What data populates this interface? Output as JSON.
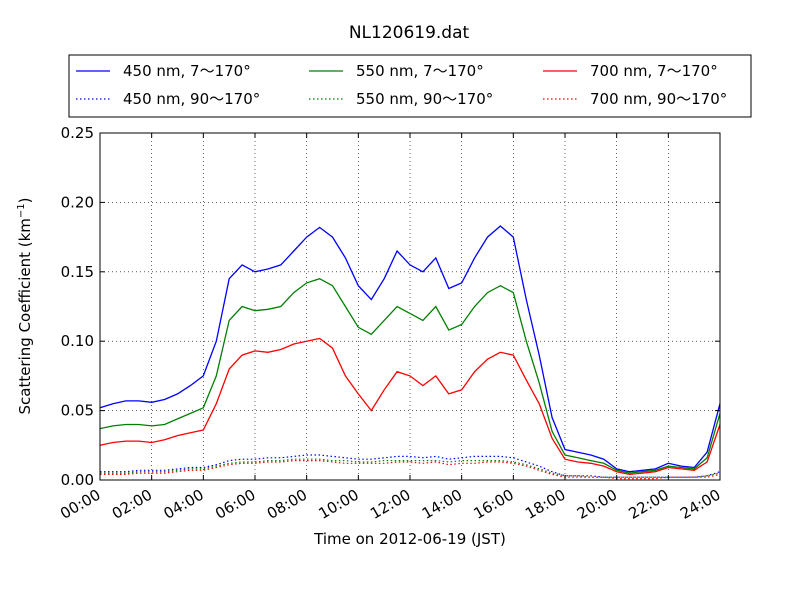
{
  "chart_data": {
    "type": "line",
    "title": "NL120619.dat",
    "xlabel": "Time on 2012-06-19 (JST)",
    "ylabel": "Scattering Coefficient (km",
    "ylabel_sup": "−1",
    "ylabel_close": ")",
    "xlim": [
      0,
      24
    ],
    "ylim": [
      0,
      0.25
    ],
    "grid": true,
    "legend_position": "top (above plot)",
    "x_ticks": [
      0,
      2,
      4,
      6,
      8,
      10,
      12,
      14,
      16,
      18,
      20,
      22,
      24
    ],
    "x_tick_labels": [
      "00:00",
      "02:00",
      "04:00",
      "06:00",
      "08:00",
      "10:00",
      "12:00",
      "14:00",
      "16:00",
      "18:00",
      "20:00",
      "22:00",
      "24:00"
    ],
    "y_ticks": [
      0,
      0.05,
      0.1,
      0.15,
      0.2,
      0.25
    ],
    "y_tick_labels": [
      "0.00",
      "0.05",
      "0.10",
      "0.15",
      "0.20",
      "0.25"
    ],
    "x": [
      0,
      0.5,
      1,
      1.5,
      2,
      2.5,
      3,
      3.5,
      4,
      4.5,
      5,
      5.5,
      6,
      6.5,
      7,
      7.5,
      8,
      8.5,
      9,
      9.5,
      10,
      10.5,
      11,
      11.5,
      12,
      12.5,
      13,
      13.5,
      14,
      14.5,
      15,
      15.5,
      16,
      16.5,
      17,
      17.5,
      18,
      18.5,
      19,
      19.5,
      20,
      20.5,
      21,
      21.5,
      22,
      22.5,
      23,
      23.5,
      24
    ],
    "series": [
      {
        "name": "450 nm, 7～170°",
        "color": "#0000ff",
        "style": "solid",
        "values": [
          0.052,
          0.055,
          0.057,
          0.057,
          0.056,
          0.058,
          0.062,
          0.068,
          0.075,
          0.1,
          0.145,
          0.155,
          0.15,
          0.152,
          0.155,
          0.165,
          0.175,
          0.182,
          0.175,
          0.16,
          0.14,
          0.13,
          0.145,
          0.165,
          0.155,
          0.15,
          0.16,
          0.138,
          0.142,
          0.16,
          0.175,
          0.183,
          0.175,
          0.13,
          0.09,
          0.045,
          0.022,
          0.02,
          0.018,
          0.015,
          0.008,
          0.006,
          0.007,
          0.008,
          0.012,
          0.01,
          0.009,
          0.02,
          0.055
        ]
      },
      {
        "name": "550 nm, 7～170°",
        "color": "#008000",
        "style": "solid",
        "values": [
          0.037,
          0.039,
          0.04,
          0.04,
          0.039,
          0.04,
          0.044,
          0.048,
          0.052,
          0.075,
          0.115,
          0.125,
          0.122,
          0.123,
          0.125,
          0.135,
          0.142,
          0.145,
          0.14,
          0.125,
          0.11,
          0.105,
          0.115,
          0.125,
          0.12,
          0.115,
          0.125,
          0.108,
          0.112,
          0.125,
          0.135,
          0.14,
          0.135,
          0.1,
          0.07,
          0.035,
          0.018,
          0.016,
          0.014,
          0.012,
          0.007,
          0.005,
          0.006,
          0.007,
          0.01,
          0.009,
          0.008,
          0.016,
          0.048
        ]
      },
      {
        "name": "700 nm, 7～170°",
        "color": "#ff0000",
        "style": "solid",
        "values": [
          0.025,
          0.027,
          0.028,
          0.028,
          0.027,
          0.029,
          0.032,
          0.034,
          0.036,
          0.055,
          0.08,
          0.09,
          0.093,
          0.092,
          0.094,
          0.098,
          0.1,
          0.102,
          0.095,
          0.075,
          0.062,
          0.05,
          0.065,
          0.078,
          0.075,
          0.068,
          0.075,
          0.062,
          0.065,
          0.078,
          0.087,
          0.092,
          0.09,
          0.072,
          0.055,
          0.03,
          0.015,
          0.013,
          0.012,
          0.01,
          0.006,
          0.004,
          0.005,
          0.006,
          0.009,
          0.008,
          0.007,
          0.013,
          0.04
        ]
      },
      {
        "name": "450 nm, 90～170°",
        "color": "#0000ff",
        "style": "dotted",
        "values": [
          0.006,
          0.006,
          0.006,
          0.007,
          0.007,
          0.007,
          0.008,
          0.009,
          0.009,
          0.011,
          0.014,
          0.015,
          0.015,
          0.016,
          0.016,
          0.017,
          0.018,
          0.018,
          0.017,
          0.016,
          0.015,
          0.015,
          0.016,
          0.017,
          0.017,
          0.016,
          0.017,
          0.015,
          0.016,
          0.017,
          0.017,
          0.017,
          0.016,
          0.013,
          0.01,
          0.006,
          0.003,
          0.003,
          0.003,
          0.002,
          0.002,
          0.002,
          0.002,
          0.002,
          0.002,
          0.002,
          0.002,
          0.003,
          0.006
        ]
      },
      {
        "name": "550 nm, 90～170°",
        "color": "#008000",
        "style": "dotted",
        "values": [
          0.005,
          0.005,
          0.005,
          0.006,
          0.006,
          0.006,
          0.007,
          0.008,
          0.008,
          0.01,
          0.012,
          0.013,
          0.013,
          0.014,
          0.014,
          0.015,
          0.015,
          0.015,
          0.014,
          0.014,
          0.013,
          0.013,
          0.014,
          0.014,
          0.014,
          0.014,
          0.014,
          0.013,
          0.014,
          0.014,
          0.014,
          0.014,
          0.013,
          0.011,
          0.008,
          0.005,
          0.003,
          0.003,
          0.002,
          0.002,
          0.002,
          0.002,
          0.002,
          0.002,
          0.002,
          0.002,
          0.002,
          0.003,
          0.005
        ]
      },
      {
        "name": "700 nm, 90～170°",
        "color": "#ff0000",
        "style": "dotted",
        "values": [
          0.004,
          0.004,
          0.004,
          0.005,
          0.005,
          0.005,
          0.006,
          0.007,
          0.007,
          0.009,
          0.011,
          0.012,
          0.012,
          0.013,
          0.013,
          0.014,
          0.014,
          0.014,
          0.013,
          0.012,
          0.012,
          0.012,
          0.012,
          0.013,
          0.013,
          0.012,
          0.013,
          0.011,
          0.012,
          0.012,
          0.013,
          0.013,
          0.012,
          0.01,
          0.007,
          0.004,
          0.002,
          0.002,
          0.002,
          0.002,
          0.001,
          0.001,
          0.001,
          0.001,
          0.002,
          0.002,
          0.002,
          0.002,
          0.004
        ]
      }
    ]
  }
}
